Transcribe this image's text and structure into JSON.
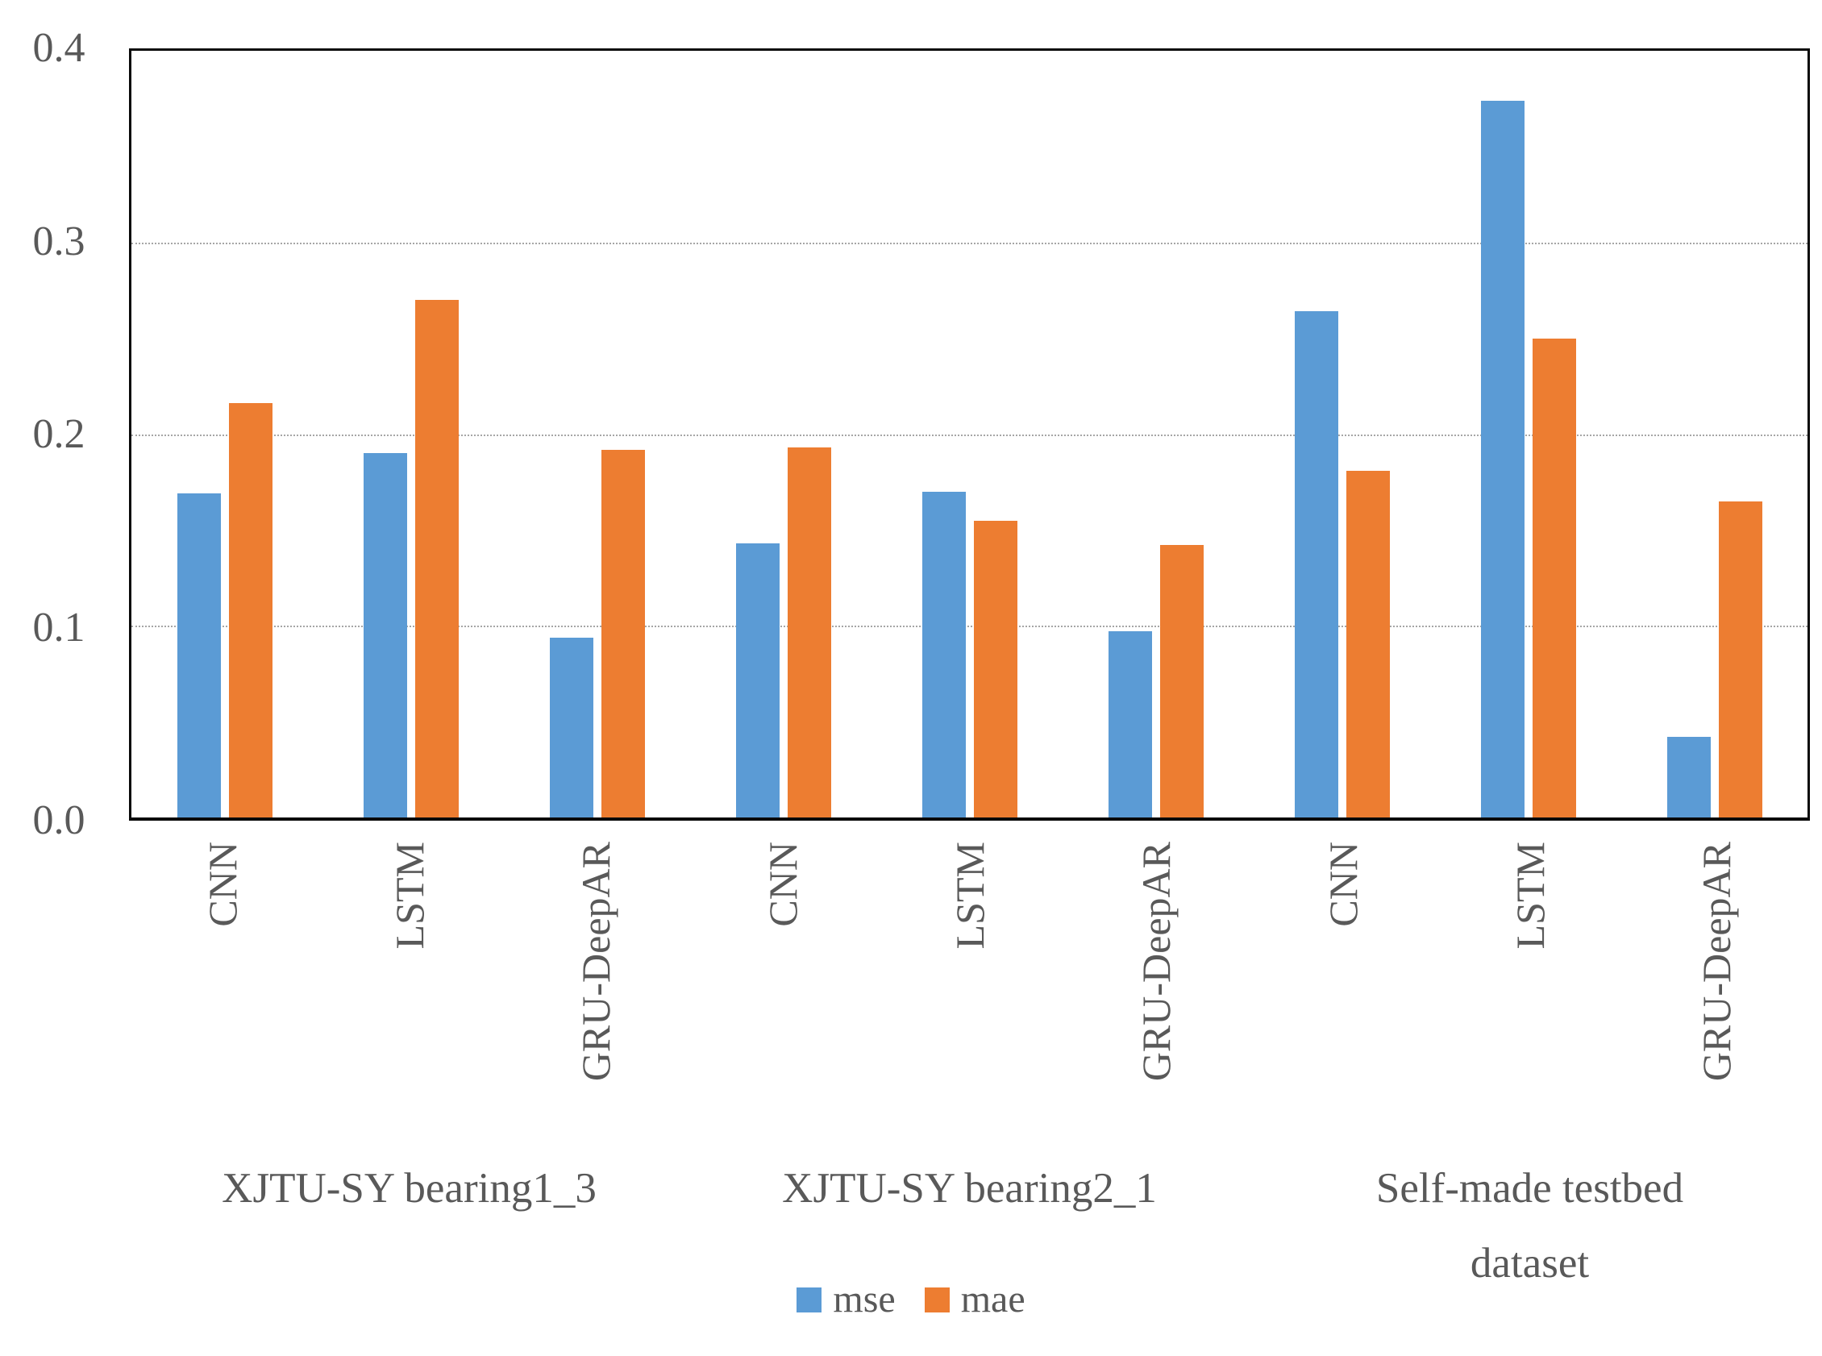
{
  "chart_data": {
    "type": "bar",
    "title": "",
    "xlabel": "",
    "ylabel": "",
    "categories": [
      "CNN",
      "LSTM",
      "GRU-DeepAR",
      "CNN",
      "LSTM",
      "GRU-DeepAR",
      "CNN",
      "LSTM",
      "GRU-DeepAR"
    ],
    "group_labels": [
      "XJTU-SY bearing1_3",
      "XJTU-SY bearing2_1",
      "Self-made testbed dataset"
    ],
    "series": [
      {
        "name": "mse",
        "color": "#5B9BD5",
        "values": [
          0.169,
          0.19,
          0.094,
          0.143,
          0.17,
          0.097,
          0.264,
          0.374,
          0.042
        ]
      },
      {
        "name": "mae",
        "color": "#ED7D31",
        "values": [
          0.216,
          0.27,
          0.192,
          0.193,
          0.155,
          0.142,
          0.181,
          0.25,
          0.165
        ]
      }
    ],
    "ylim": [
      0,
      0.4
    ],
    "yticks": [
      0.4,
      0.3,
      0.2,
      0.1,
      0.0
    ],
    "ytick_labels": [
      "0.4",
      "0.3",
      "0.2",
      "0.1",
      "0.0"
    ],
    "grid": true,
    "legend_position": "bottom"
  },
  "style": {
    "text_color": "#595959",
    "gridline_color": "#a6a6a6",
    "plot_border_color": "#0a0a0a",
    "background_color": "#ffffff"
  }
}
